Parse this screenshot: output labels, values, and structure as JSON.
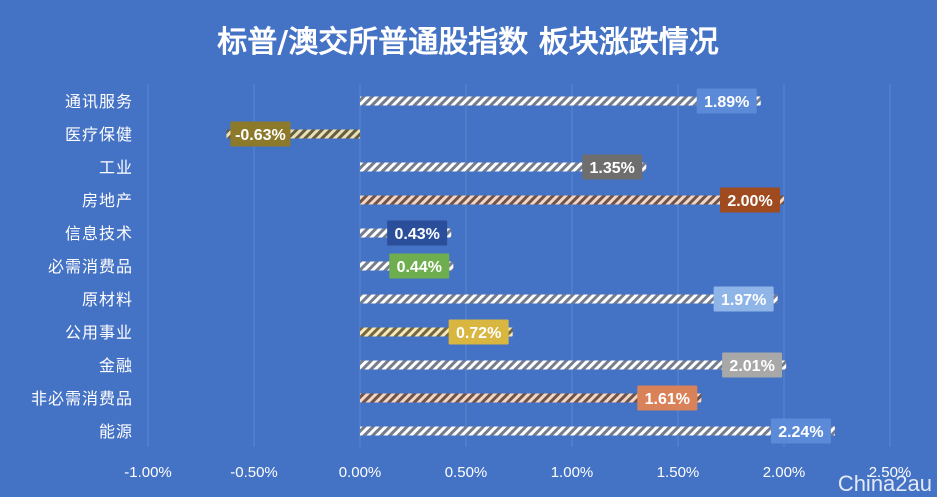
{
  "chart_data": {
    "type": "bar",
    "orientation": "horizontal",
    "title": "标普/澳交所普通股指数 板块涨跌情况",
    "categories": [
      "通讯服务",
      "医疗保健",
      "工业",
      "房地产",
      "信息技术",
      "必需消费品",
      "原材料",
      "公用事业",
      "金融",
      "非必需消费品",
      "能源"
    ],
    "values": [
      1.89,
      -0.63,
      1.35,
      2.0,
      0.43,
      0.44,
      1.97,
      0.72,
      2.01,
      1.61,
      2.24
    ],
    "data_labels": [
      "1.89%",
      "-0.63%",
      "1.35%",
      "2.00%",
      "0.43%",
      "0.44%",
      "1.97%",
      "0.72%",
      "2.01%",
      "1.61%",
      "2.24%"
    ],
    "bar_colors": [
      "#FFFFFF",
      "#C9A227",
      "#FFFFFF",
      "#E58A4A",
      "#FFFFFF",
      "#FFFFFF",
      "#FFFFFF",
      "#F2C12E",
      "#FFFFFF",
      "#E58A4A",
      "#FFFFFF"
    ],
    "label_colors": [
      "#5B8BD8",
      "#8C7A2A",
      "#6E6E6E",
      "#A04A20",
      "#2A4E9A",
      "#6FAE4E",
      "#8FB5E8",
      "#D9B640",
      "#A8A8A8",
      "#D9825A",
      "#5B8BD8"
    ],
    "xlim": [
      -1.0,
      2.5
    ],
    "xticks": [
      -1.0,
      -0.5,
      0.0,
      0.5,
      1.0,
      1.5,
      2.0,
      2.5
    ],
    "xtick_labels": [
      "-1.00%",
      "-0.50%",
      "0.00%",
      "0.50%",
      "1.00%",
      "1.50%",
      "2.00%",
      "2.50%"
    ],
    "grid": "vertical",
    "legend": "none",
    "background": "#4472C4",
    "grid_color": "#5B85CF"
  },
  "watermark": "China2au"
}
